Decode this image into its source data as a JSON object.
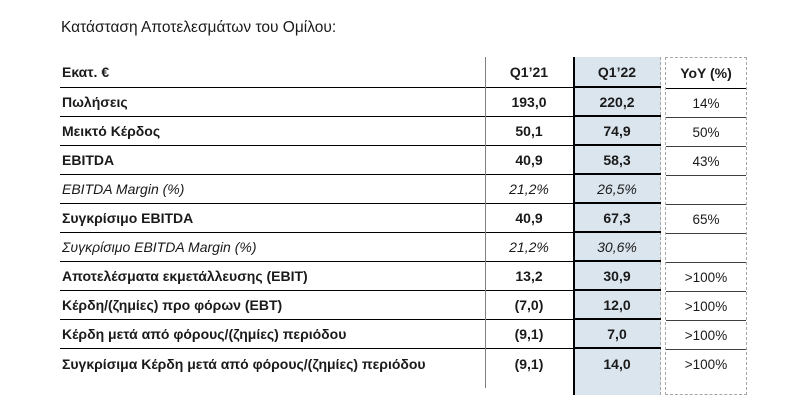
{
  "title": "Κατάσταση Αποτελεσμάτων του Ομίλου:",
  "table": {
    "columns": [
      "Εκατ. €",
      "Q1’21",
      "Q1’22",
      "YoY (%)"
    ],
    "highlight_color": "#dbe5ee",
    "rows": [
      {
        "label": "Πωλήσεις",
        "q121": "193,0",
        "q122": "220,2",
        "yoy": "14%",
        "style": "bold"
      },
      {
        "label": "Μεικτό Κέρδος",
        "q121": "50,1",
        "q122": "74,9",
        "yoy": "50%",
        "style": "bold"
      },
      {
        "label": "EBITDA",
        "q121": "40,9",
        "q122": "58,3",
        "yoy": "43%",
        "style": "bold"
      },
      {
        "label": "EBITDA Margin (%)",
        "q121": "21,2%",
        "q122": "26,5%",
        "yoy": "",
        "style": "italic"
      },
      {
        "label": "Συγκρίσιμο EBITDA",
        "q121": "40,9",
        "q122": "67,3",
        "yoy": "65%",
        "style": "bold"
      },
      {
        "label": "Συγκρίσιμο EBITDA Margin (%)",
        "q121": "21,2%",
        "q122": "30,6%",
        "yoy": "",
        "style": "italic"
      },
      {
        "label": "Αποτελέσματα εκμετάλλευσης (EBIT)",
        "q121": "13,2",
        "q122": "30,9",
        "yoy": ">100%",
        "style": "bold"
      },
      {
        "label": "Κέρδη/(ζημίες) προ φόρων (EBT)",
        "q121": "(7,0)",
        "q122": "12,0",
        "yoy": ">100%",
        "style": "bold"
      },
      {
        "label": "Κέρδη μετά από φόρους/(ζημίες) περιόδου",
        "q121": "(9,1)",
        "q122": "7,0",
        "yoy": ">100%",
        "style": "bold"
      },
      {
        "label": "Συγκρίσιμα Κέρδη μετά από φόρους/(ζημίες) περιόδου",
        "q121": "(9,1)",
        "q122": "14,0",
        "yoy": ">100%",
        "style": "bold"
      }
    ]
  }
}
